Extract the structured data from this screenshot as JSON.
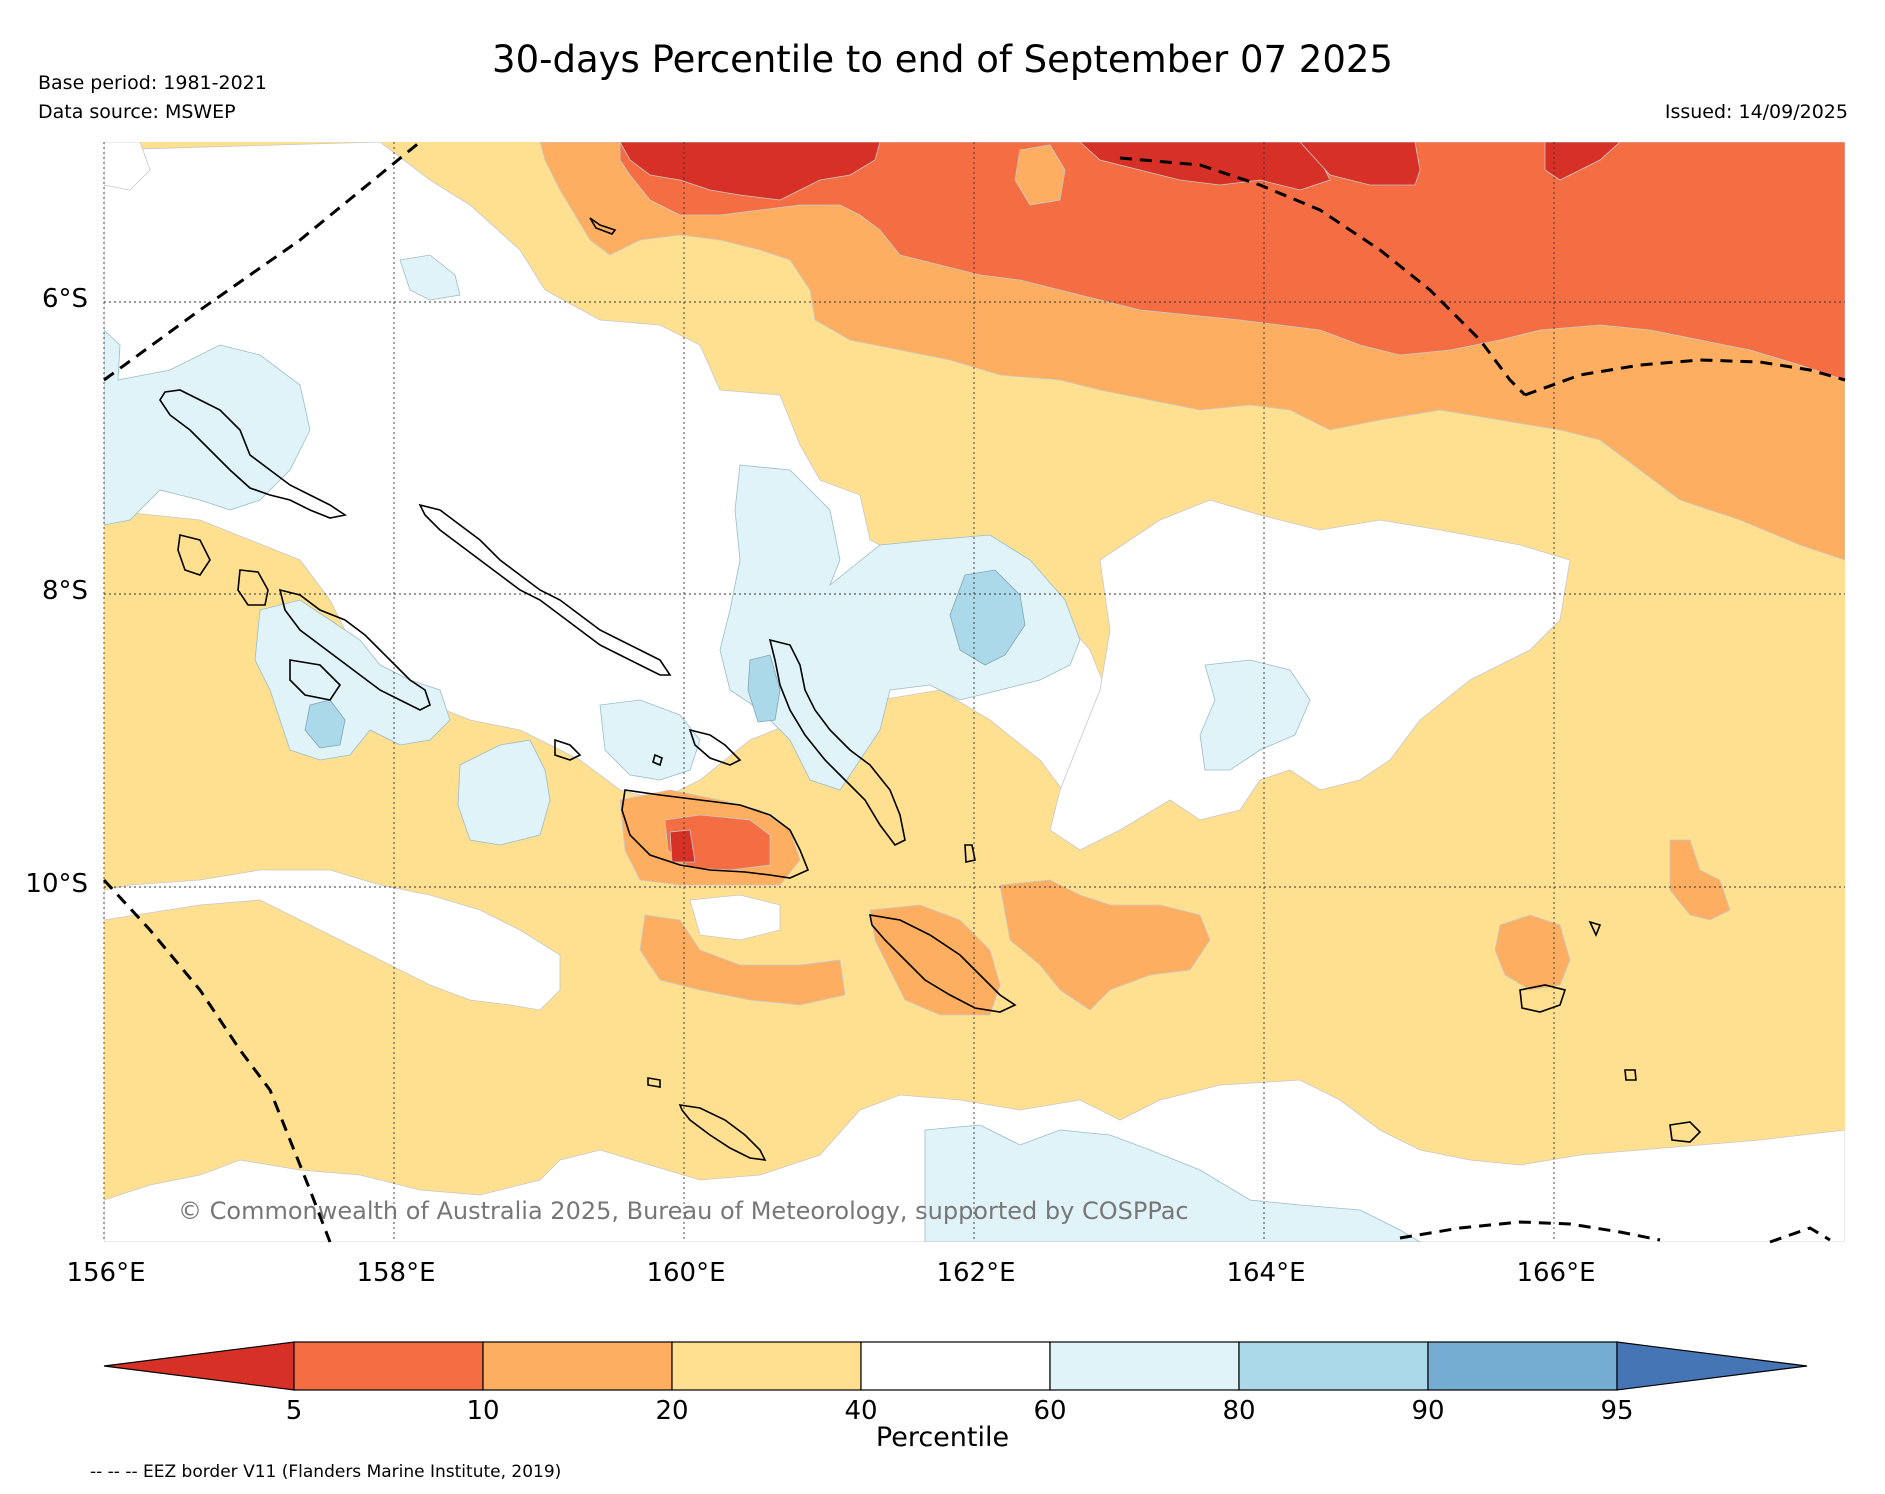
{
  "header": {
    "title": "30-days Percentile to end of September 07 2025",
    "base_period": "Base period: 1981-2021",
    "data_source": "Data source: MSWEP",
    "issued": "Issued: 14/09/2025"
  },
  "map": {
    "lat_labels": [
      "6°S",
      "8°S",
      "10°S"
    ],
    "lon_labels": [
      "156°E",
      "158°E",
      "160°E",
      "162°E",
      "164°E",
      "166°E"
    ],
    "copyright": "© Commonwealth of Australia 2025, Bureau of Meteorology, supported by COSPPac",
    "colors": {
      "below_5": "#d73027",
      "p5_10": "#f46d43",
      "p10_20": "#fdae61",
      "p20_40": "#fee090",
      "p40_60": "#ffffff",
      "p60_80": "#e0f3f8",
      "p80_90": "#abd9e9",
      "p90_95": "#74add1",
      "above_95": "#4575b4"
    }
  },
  "colorbar": {
    "ticks": [
      "5",
      "10",
      "20",
      "40",
      "60",
      "80",
      "90",
      "95"
    ],
    "label": "Percentile",
    "colors": [
      "#d73027",
      "#f46d43",
      "#fdae61",
      "#fee090",
      "#ffffff",
      "#e0f3f8",
      "#abd9e9",
      "#74add1",
      "#4575b4"
    ]
  },
  "footer": {
    "eez_note": "-- -- -- EEZ border V11 (Flanders Marine Institute, 2019)"
  }
}
